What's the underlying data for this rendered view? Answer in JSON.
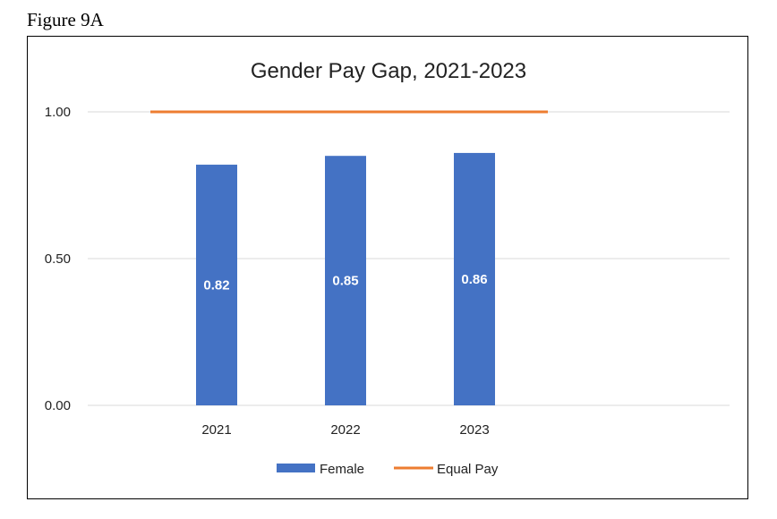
{
  "figure_label": "Figure 9A",
  "chart_data": {
    "type": "bar",
    "title": "Gender Pay Gap, 2021-2023",
    "categories": [
      "2021",
      "2022",
      "2023"
    ],
    "series": [
      {
        "name": "Female",
        "type": "bar",
        "values": [
          0.82,
          0.85,
          0.86
        ],
        "data_labels": [
          "0.82",
          "0.85",
          "0.86"
        ],
        "color": "#4472C4"
      },
      {
        "name": "Equal Pay",
        "type": "line",
        "values": [
          1.0,
          1.0,
          1.0
        ],
        "color": "#ED7D31"
      }
    ],
    "yticks": [
      "0.00",
      "0.50",
      "1.00"
    ],
    "ylim": [
      0,
      1
    ],
    "grid": true,
    "legend_position": "bottom"
  }
}
